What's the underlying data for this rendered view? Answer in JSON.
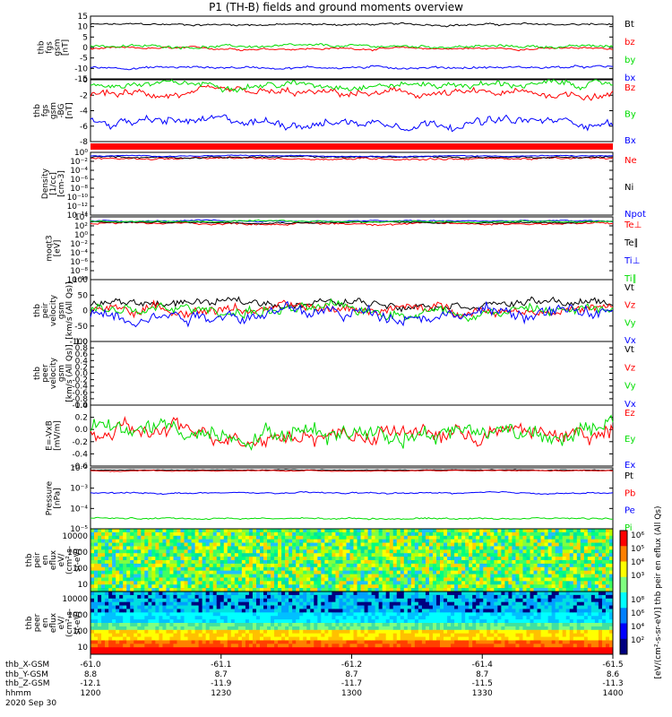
{
  "title": "P1 (TH-B) fields and ground moments overview",
  "colors": {
    "black": "#000000",
    "red": "#ff0000",
    "green": "#00dd00",
    "blue": "#0000ff",
    "darkgreen": "#00aa00"
  },
  "chart_data": {
    "type": "line",
    "x_axis": {
      "range": [
        "1200",
        "1400"
      ],
      "ticks": [
        {
          "hhmm": "1200",
          "x_gsm": "-61.0",
          "y_gsm": "8.8",
          "z_gsm": "-12.1"
        },
        {
          "hhmm": "1230",
          "x_gsm": "-61.1",
          "y_gsm": "8.7",
          "z_gsm": "-11.9"
        },
        {
          "hhmm": "1300",
          "x_gsm": "-61.2",
          "y_gsm": "8.7",
          "z_gsm": "-11.7"
        },
        {
          "hhmm": "1330",
          "x_gsm": "-61.4",
          "y_gsm": "8.7",
          "z_gsm": "-11.5"
        },
        {
          "hhmm": "1400",
          "x_gsm": "-61.5",
          "y_gsm": "8.6",
          "z_gsm": "-11.3"
        }
      ],
      "row_labels": [
        "thb_X-GSM",
        "thb_Y-GSM",
        "thb_Z-GSM",
        "hhmm"
      ],
      "date": "2020 Sep 30"
    },
    "panels": [
      {
        "id": "fgs",
        "ylabel": [
          "thb",
          "fgs",
          "gsm",
          "[nT]"
        ],
        "scale": "linear",
        "ylim": [
          -15,
          15
        ],
        "yticks": [
          "15",
          "10",
          "5",
          "0",
          "-5",
          "-10",
          "-15"
        ],
        "series": [
          {
            "name": "Bt",
            "color": "#000000",
            "level": 11,
            "amp": 0.6
          },
          {
            "name": "bz",
            "color": "#ff0000",
            "level": -0.5,
            "amp": 0.6
          },
          {
            "name": "by",
            "color": "#00dd00",
            "level": 0.5,
            "amp": 0.8
          },
          {
            "name": "bx",
            "color": "#0000ff",
            "level": -9.5,
            "amp": 0.7
          }
        ]
      },
      {
        "id": "fgs_zoom",
        "ylabel": [
          "thb",
          "fgs",
          "gsm",
          "-BG",
          "[nT]"
        ],
        "scale": "linear",
        "ylim": [
          -9,
          0.5
        ],
        "yticks": [
          "0",
          "-2",
          "-4",
          "-6",
          "-8"
        ],
        "series": [
          {
            "name": "Bz",
            "color": "#ff0000",
            "level": -1.7,
            "amp": 0.7
          },
          {
            "name": "By",
            "color": "#00dd00",
            "level": -0.2,
            "amp": 0.6
          },
          {
            "name": "Bx",
            "color": "#0000ff",
            "level": -6.0,
            "amp": 0.8
          }
        ]
      },
      {
        "id": "density",
        "ylabel": [
          "Density",
          "[1/cc]",
          "[cm-3]"
        ],
        "scale": "log",
        "ylim": [
          -15,
          1
        ],
        "yticks": [
          "10⁰",
          "10⁻²",
          "10⁻⁴",
          "10⁻⁶",
          "10⁻⁸",
          "10⁻¹⁰",
          "10⁻¹²",
          "10⁻¹⁴"
        ],
        "series": [
          {
            "name": "Ne",
            "color": "#ff0000",
            "level": -0.6,
            "amp": 0.3
          },
          {
            "name": "Ni",
            "color": "#000000",
            "level": -0.2,
            "amp": 0.25
          },
          {
            "name": "Npot",
            "color": "#0000ff",
            "level": 0.1,
            "amp": 0.15
          }
        ]
      },
      {
        "id": "temperature",
        "ylabel": [
          "moqt3",
          "[eV]"
        ],
        "scale": "log",
        "ylim": [
          -11,
          4
        ],
        "yticks": [
          "10⁴",
          "10²",
          "10⁰",
          "10⁻²",
          "10⁻⁴",
          "10⁻⁶",
          "10⁻⁸",
          "10⁻¹⁰"
        ],
        "series": [
          {
            "name": "Te⊥",
            "color": "#ff0000",
            "level": 2.4,
            "amp": 0.3
          },
          {
            "name": "Te∥",
            "color": "#000000",
            "level": 2.7,
            "amp": 0.2
          },
          {
            "name": "Ti⊥",
            "color": "#0000ff",
            "level": 3.0,
            "amp": 0.2
          },
          {
            "name": "Ti∥",
            "color": "#00dd00",
            "level": 2.9,
            "amp": 0.2
          }
        ]
      },
      {
        "id": "peir_velocity",
        "ylabel": [
          "thb",
          "peir",
          "velocity",
          "gsm",
          "[km/s (All Qs)]"
        ],
        "scale": "linear",
        "ylim": [
          -100,
          100
        ],
        "yticks": [
          "100",
          "50",
          "0",
          "-50",
          "-100"
        ],
        "series": [
          {
            "name": "Vt",
            "color": "#000000",
            "level": 25,
            "amp": 15
          },
          {
            "name": "Vz",
            "color": "#ff0000",
            "level": 5,
            "amp": 18
          },
          {
            "name": "Vy",
            "color": "#00dd00",
            "level": 0,
            "amp": 22
          },
          {
            "name": "Vx",
            "color": "#0000ff",
            "level": -8,
            "amp": 25
          }
        ]
      },
      {
        "id": "peer_velocity",
        "ylabel": [
          "thb",
          "peer",
          "velocity",
          "gsm",
          "[km/s (All Qs)]"
        ],
        "scale": "linear",
        "ylim": [
          -1,
          1
        ],
        "yticks": [
          "1.0",
          "0.8",
          "0.6",
          "0.4",
          "0.2",
          "0.0",
          "-0.2",
          "-0.4",
          "-0.6",
          "-0.8",
          "-1.0"
        ],
        "series": [
          {
            "name": "Vt",
            "color": "#000000",
            "level": null,
            "amp": 0
          },
          {
            "name": "Vz",
            "color": "#ff0000",
            "level": null,
            "amp": 0
          },
          {
            "name": "Vy",
            "color": "#00dd00",
            "level": null,
            "amp": 0
          },
          {
            "name": "Vx",
            "color": "#0000ff",
            "level": null,
            "amp": 0
          }
        ]
      },
      {
        "id": "efield",
        "ylabel": [
          "E=-VxB",
          "[mV/m]"
        ],
        "scale": "linear",
        "ylim": [
          -0.65,
          0.55
        ],
        "yticks": [
          "0.4",
          "0.2",
          "0.0",
          "-0.2",
          "-0.4",
          "-0.6"
        ],
        "series": [
          {
            "name": "Ez",
            "color": "#ff0000",
            "level": 0,
            "amp": 0.2
          },
          {
            "name": "Ey",
            "color": "#00dd00",
            "level": 0.05,
            "amp": 0.22
          },
          {
            "name": "Ex",
            "color": "#0000ff",
            "level": null,
            "amp": 0
          }
        ]
      },
      {
        "id": "pressure",
        "ylabel": [
          "Pressure",
          "[nPa]"
        ],
        "scale": "log",
        "ylim": [
          -5.3,
          -1.2
        ],
        "yticks": [
          "10⁻²",
          "10⁻³",
          "10⁻⁴",
          "10⁻⁵"
        ],
        "series": [
          {
            "name": "Pt",
            "color": "#000000",
            "level": -1.35,
            "amp": 0.03
          },
          {
            "name": "Pb",
            "color": "#ff0000",
            "level": -1.4,
            "amp": 0.03
          },
          {
            "name": "Pe",
            "color": "#0000ff",
            "level": -2.9,
            "amp": 0.06
          },
          {
            "name": "Pi",
            "color": "#00dd00",
            "level": -4.6,
            "amp": 0.06
          }
        ]
      },
      {
        "id": "peir_spectrogram",
        "type": "heatmap",
        "ylabel": [
          "thb",
          "peir",
          "en",
          "eflux",
          "eV/",
          "(cm²-s-",
          "sr-eV)"
        ],
        "scale": "log",
        "yticks": [
          "10000",
          "1000",
          "100",
          "10"
        ],
        "palette": "green-yellow"
      },
      {
        "id": "peer_spectrogram",
        "type": "heatmap",
        "ylabel": [
          "thb",
          "peer",
          "en",
          "eflux",
          "eV/",
          "(cm²-s-",
          "sr-eV)"
        ],
        "scale": "log",
        "yticks": [
          "10000",
          "1000",
          "100",
          "10"
        ],
        "palette": "banded"
      }
    ],
    "colorbars": [
      {
        "ticks": [
          "10⁶",
          "10⁵",
          "10⁴",
          "10³"
        ]
      },
      {
        "ticks": [
          "10⁸",
          "10⁶",
          "10⁴",
          "10²"
        ]
      }
    ],
    "colorbar_label": "[eV/(cm²-s-sr-eV)] thb peir en eflux (All Qs)"
  }
}
